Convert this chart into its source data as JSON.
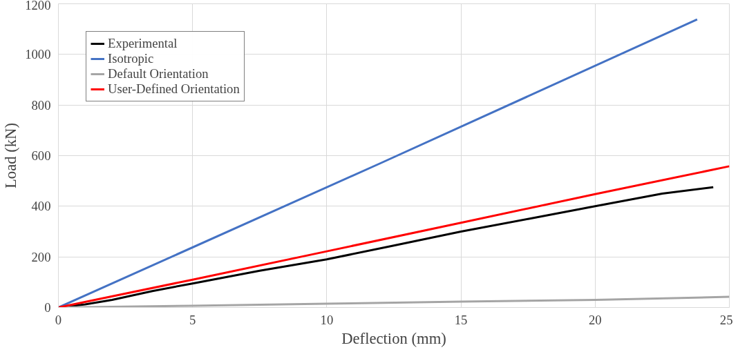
{
  "chart_data": {
    "type": "line",
    "xlabel": "Deflection (mm)",
    "ylabel": "Load (kN)",
    "xlim": [
      0,
      25
    ],
    "ylim": [
      0,
      1200
    ],
    "xticks": [
      0,
      5,
      10,
      15,
      20,
      25
    ],
    "yticks": [
      0,
      200,
      400,
      600,
      800,
      1000,
      1200
    ],
    "grid": true,
    "legend": "top left",
    "marker": "none",
    "line_style": "solid",
    "series": [
      {
        "name": "Experimental",
        "color": "#000000",
        "x": [
          0,
          1,
          2,
          3.5,
          5,
          7.5,
          10,
          12.5,
          15,
          17.5,
          20,
          22.5,
          24.4
        ],
        "values": [
          0,
          12,
          30,
          65,
          95,
          145,
          190,
          245,
          300,
          350,
          400,
          450,
          475
        ]
      },
      {
        "name": "Isotropic",
        "color": "#4472c4",
        "x": [
          0,
          12,
          23.8
        ],
        "values": [
          0,
          570,
          1138
        ]
      },
      {
        "name": "Default Orientation",
        "color": "#a5a5a5",
        "x": [
          0,
          5,
          10,
          15,
          20,
          25
        ],
        "values": [
          0,
          7,
          15,
          23,
          30,
          42
        ]
      },
      {
        "name": "User-Defined Orientation",
        "color": "#ff0000",
        "x": [
          0,
          5,
          10,
          15,
          20,
          25
        ],
        "values": [
          0,
          110,
          222,
          335,
          448,
          558
        ]
      }
    ]
  }
}
